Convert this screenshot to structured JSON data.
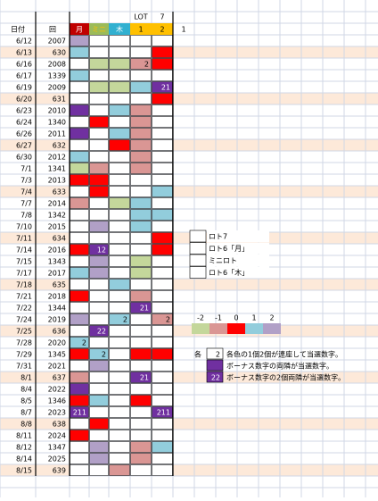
{
  "header": {
    "top": [
      "LOT",
      "7"
    ],
    "columns": [
      {
        "text": "日付",
        "color": null,
        "ink": "#000000"
      },
      {
        "text": "回",
        "color": null,
        "ink": "#000000"
      },
      {
        "text": "月",
        "color": "#c00000",
        "ink": "#ffffff"
      },
      {
        "text": "ミニ",
        "color": "#9bbb59",
        "ink": "#ffc000"
      },
      {
        "text": "木",
        "color": "#31b0d0",
        "ink": "#ffffff"
      },
      {
        "text": "1",
        "color": "#ffc000",
        "ink": "#000000"
      },
      {
        "text": "2",
        "color": "#ffc000",
        "ink": "#000000"
      },
      {
        "text": "1",
        "color": null,
        "ink": "#000000"
      }
    ]
  },
  "rows": [
    {
      "date": "6/12",
      "no": "2007",
      "bg": null,
      "cells": [
        {
          "color": "#b1a0c7"
        },
        {
          "color": "#ffffff"
        },
        {
          "color": "#ffffff"
        },
        {
          "color": "#ffffff"
        },
        {
          "color": "#ffffff"
        }
      ]
    },
    {
      "date": "6/13",
      "no": "630",
      "bg": "#fde9d9",
      "cells": [
        {
          "color": "#92cddc"
        },
        {
          "color": "#ffffff"
        },
        {
          "color": "#ffffff"
        },
        {
          "color": "#ffffff"
        },
        {
          "color": "#ff0000"
        }
      ]
    },
    {
      "date": "6/16",
      "no": "2008",
      "bg": null,
      "cells": [
        {
          "color": "#ffffff"
        },
        {
          "color": "#c4d79b"
        },
        {
          "color": "#c4d79b"
        },
        {
          "color": "#da9694",
          "text": "2"
        },
        {
          "color": "#ff0000"
        }
      ]
    },
    {
      "date": "6/17",
      "no": "1339",
      "bg": null,
      "cells": [
        {
          "color": "#92cddc"
        },
        {
          "color": "#ffffff"
        },
        {
          "color": "#ffffff"
        },
        {
          "color": "#ffffff"
        },
        {
          "color": "#ffffff"
        }
      ]
    },
    {
      "date": "6/19",
      "no": "2009",
      "bg": null,
      "cells": [
        {
          "color": "#ffffff"
        },
        {
          "color": "#c4d79b"
        },
        {
          "color": "#c4d79b"
        },
        {
          "color": "#92cddc"
        },
        {
          "color": "#7030a0",
          "text": "21"
        }
      ]
    },
    {
      "date": "6/20",
      "no": "631",
      "bg": "#fde9d9",
      "cells": [
        {
          "color": "#ffffff"
        },
        {
          "color": "#ffffff"
        },
        {
          "color": "#ffffff"
        },
        {
          "color": "#ffffff"
        },
        {
          "color": "#ff0000"
        }
      ]
    },
    {
      "date": "6/23",
      "no": "2010",
      "bg": null,
      "cells": [
        {
          "color": "#7030a0"
        },
        {
          "color": "#ffffff"
        },
        {
          "color": "#92cddc"
        },
        {
          "color": "#da9694"
        },
        {
          "color": "#ffffff"
        }
      ]
    },
    {
      "date": "6/24",
      "no": "1340",
      "bg": null,
      "cells": [
        {
          "color": "#ffffff"
        },
        {
          "color": "#ff0000"
        },
        {
          "color": "#ffffff"
        },
        {
          "color": "#da9694"
        },
        {
          "color": "#ffffff"
        }
      ]
    },
    {
      "date": "6/26",
      "no": "2011",
      "bg": null,
      "cells": [
        {
          "color": "#7030a0"
        },
        {
          "color": "#ffffff"
        },
        {
          "color": "#92cddc"
        },
        {
          "color": "#da9694"
        },
        {
          "color": "#ffffff"
        }
      ]
    },
    {
      "date": "6/27",
      "no": "632",
      "bg": "#fde9d9",
      "cells": [
        {
          "color": "#ffffff"
        },
        {
          "color": "#ffffff"
        },
        {
          "color": "#ff0000"
        },
        {
          "color": "#da9694"
        },
        {
          "color": "#ffffff"
        }
      ]
    },
    {
      "date": "6/30",
      "no": "2012",
      "bg": null,
      "cells": [
        {
          "color": "#92cddc"
        },
        {
          "color": "#ffffff"
        },
        {
          "color": "#ffffff"
        },
        {
          "color": "#da9694"
        },
        {
          "color": "#ffffff"
        }
      ]
    },
    {
      "date": "7/1",
      "no": "1341",
      "bg": null,
      "cells": [
        {
          "color": "#c4d79b"
        },
        {
          "color": "#da9694"
        },
        {
          "color": "#ffffff"
        },
        {
          "color": "#da9694"
        },
        {
          "color": "#ffffff"
        }
      ]
    },
    {
      "date": "7/3",
      "no": "2013",
      "bg": null,
      "cells": [
        {
          "color": "#ff0000"
        },
        {
          "color": "#ff0000"
        },
        {
          "color": "#ffffff"
        },
        {
          "color": "#ffffff"
        },
        {
          "color": "#ffffff"
        }
      ]
    },
    {
      "date": "7/4",
      "no": "633",
      "bg": "#fde9d9",
      "cells": [
        {
          "color": "#ffffff"
        },
        {
          "color": "#ff0000"
        },
        {
          "color": "#ffffff"
        },
        {
          "color": "#ffffff"
        },
        {
          "color": "#92cddc"
        }
      ]
    },
    {
      "date": "7/7",
      "no": "2014",
      "bg": null,
      "cells": [
        {
          "color": "#da9694"
        },
        {
          "color": "#ffffff"
        },
        {
          "color": "#c4d79b"
        },
        {
          "color": "#92cddc"
        },
        {
          "color": "#ffffff"
        }
      ]
    },
    {
      "date": "7/8",
      "no": "1342",
      "bg": null,
      "cells": [
        {
          "color": "#ffffff"
        },
        {
          "color": "#ffffff"
        },
        {
          "color": "#ffffff"
        },
        {
          "color": "#92cddc"
        },
        {
          "color": "#92cddc"
        }
      ]
    },
    {
      "date": "7/10",
      "no": "2015",
      "bg": null,
      "cells": [
        {
          "color": "#ffffff"
        },
        {
          "color": "#b1a0c7"
        },
        {
          "color": "#ffffff"
        },
        {
          "color": "#92cddc"
        },
        {
          "color": "#ffffff"
        }
      ]
    },
    {
      "date": "7/11",
      "no": "634",
      "bg": "#fde9d9",
      "cells": [
        {
          "color": "#ffffff"
        },
        {
          "color": "#ffffff"
        },
        {
          "color": "#ffffff"
        },
        {
          "color": "#ffffff"
        },
        {
          "color": "#ff0000"
        }
      ]
    },
    {
      "date": "7/14",
      "no": "2016",
      "bg": null,
      "cells": [
        {
          "color": "#ff0000"
        },
        {
          "color": "#7030a0",
          "text": "12"
        },
        {
          "color": "#ffffff"
        },
        {
          "color": "#ffffff"
        },
        {
          "color": "#ff0000"
        }
      ]
    },
    {
      "date": "7/15",
      "no": "1343",
      "bg": null,
      "cells": [
        {
          "color": "#ffffff"
        },
        {
          "color": "#b1a0c7"
        },
        {
          "color": "#ffffff"
        },
        {
          "color": "#c4d79b"
        },
        {
          "color": "#ffffff"
        }
      ]
    },
    {
      "date": "7/17",
      "no": "2017",
      "bg": null,
      "cells": [
        {
          "color": "#92cddc"
        },
        {
          "color": "#b1a0c7"
        },
        {
          "color": "#ffffff"
        },
        {
          "color": "#c4d79b"
        },
        {
          "color": "#ffffff"
        }
      ]
    },
    {
      "date": "7/18",
      "no": "635",
      "bg": "#fde9d9",
      "cells": [
        {
          "color": "#ffffff"
        },
        {
          "color": "#ffffff"
        },
        {
          "color": "#92cddc"
        },
        {
          "color": "#ffffff"
        },
        {
          "color": "#ffffff"
        }
      ]
    },
    {
      "date": "7/21",
      "no": "2018",
      "bg": null,
      "cells": [
        {
          "color": "#ff0000"
        },
        {
          "color": "#ffffff"
        },
        {
          "color": "#ffffff"
        },
        {
          "color": "#da9694"
        },
        {
          "color": "#ffffff"
        }
      ]
    },
    {
      "date": "7/22",
      "no": "1344",
      "bg": null,
      "cells": [
        {
          "color": "#ffffff"
        },
        {
          "color": "#ffffff"
        },
        {
          "color": "#ffffff"
        },
        {
          "color": "#7030a0",
          "text": "21"
        },
        {
          "color": "#ffffff"
        }
      ]
    },
    {
      "date": "7/24",
      "no": "2019",
      "bg": null,
      "cells": [
        {
          "color": "#b1a0c7"
        },
        {
          "color": "#ffffff"
        },
        {
          "color": "#92cddc",
          "text": "2"
        },
        {
          "color": "#ffffff"
        },
        {
          "color": "#da9694",
          "text": "2"
        }
      ]
    },
    {
      "date": "7/25",
      "no": "636",
      "bg": "#fde9d9",
      "cells": [
        {
          "color": "#ffffff"
        },
        {
          "color": "#7030a0",
          "text": "22"
        },
        {
          "color": "#ffffff"
        },
        {
          "color": "#ffffff"
        },
        {
          "color": "#ffffff"
        }
      ]
    },
    {
      "date": "7/28",
      "no": "2020",
      "bg": null,
      "cells": [
        {
          "color": "#92cddc",
          "text": "2"
        },
        {
          "color": "#ffffff"
        },
        {
          "color": "#ffffff"
        },
        {
          "color": "#ffffff"
        },
        {
          "color": "#ffffff"
        }
      ]
    },
    {
      "date": "7/29",
      "no": "1345",
      "bg": null,
      "cells": [
        {
          "color": "#ff0000"
        },
        {
          "color": "#92cddc",
          "text": "2"
        },
        {
          "color": "#ffffff"
        },
        {
          "color": "#ff0000"
        },
        {
          "color": "#ff0000"
        }
      ]
    },
    {
      "date": "7/31",
      "no": "2021",
      "bg": null,
      "cells": [
        {
          "color": "#ffffff"
        },
        {
          "color": "#b1a0c7"
        },
        {
          "color": "#ffffff"
        },
        {
          "color": "#ffffff"
        },
        {
          "color": "#ffffff"
        }
      ]
    },
    {
      "date": "8/1",
      "no": "637",
      "bg": "#fde9d9",
      "cells": [
        {
          "color": "#da9694"
        },
        {
          "color": "#ffffff"
        },
        {
          "color": "#ffffff"
        },
        {
          "color": "#7030a0",
          "text": "21"
        },
        {
          "color": "#ffffff"
        }
      ]
    },
    {
      "date": "8/4",
      "no": "2022",
      "bg": null,
      "cells": [
        {
          "color": "#7030a0"
        },
        {
          "color": "#ffffff"
        },
        {
          "color": "#ffffff"
        },
        {
          "color": "#ffffff"
        },
        {
          "color": "#ffffff"
        }
      ]
    },
    {
      "date": "8/5",
      "no": "1346",
      "bg": null,
      "cells": [
        {
          "color": "#ff0000"
        },
        {
          "color": "#92cddc"
        },
        {
          "color": "#ffffff"
        },
        {
          "color": "#ff0000"
        },
        {
          "color": "#ffffff"
        }
      ]
    },
    {
      "date": "8/7",
      "no": "2023",
      "bg": null,
      "cells": [
        {
          "color": "#7030a0",
          "text": "211"
        },
        {
          "color": "#ffffff"
        },
        {
          "color": "#ffffff"
        },
        {
          "color": "#ffffff"
        },
        {
          "color": "#7030a0",
          "text": "211"
        }
      ]
    },
    {
      "date": "8/8",
      "no": "638",
      "bg": "#fde9d9",
      "cells": [
        {
          "color": "#ffffff"
        },
        {
          "color": "#ff0000"
        },
        {
          "color": "#ffffff"
        },
        {
          "color": "#ffffff"
        },
        {
          "color": "#ffffff"
        }
      ]
    },
    {
      "date": "8/11",
      "no": "2024",
      "bg": null,
      "cells": [
        {
          "color": "#ff0000"
        },
        {
          "color": "#ffffff"
        },
        {
          "color": "#ffffff"
        },
        {
          "color": "#ffffff"
        },
        {
          "color": "#ffffff"
        }
      ]
    },
    {
      "date": "8/12",
      "no": "1347",
      "bg": null,
      "cells": [
        {
          "color": "#ffffff"
        },
        {
          "color": "#b1a0c7"
        },
        {
          "color": "#ffffff"
        },
        {
          "color": "#da9694"
        },
        {
          "color": "#92cddc"
        }
      ]
    },
    {
      "date": "8/14",
      "no": "2025",
      "bg": null,
      "cells": [
        {
          "color": "#ffffff"
        },
        {
          "color": "#b1a0c7"
        },
        {
          "color": "#ffffff"
        },
        {
          "color": "#da9694"
        },
        {
          "color": "#ffffff"
        }
      ]
    },
    {
      "date": "8/15",
      "no": "639",
      "bg": "#fde9d9",
      "cells": [
        {
          "color": "#ffffff"
        },
        {
          "color": "#ffffff"
        },
        {
          "color": "#da9694"
        },
        {
          "color": "#ffffff"
        },
        {
          "color": "#ffffff"
        }
      ]
    }
  ],
  "legend": [
    "ロト7",
    "ロト6「月」",
    "ミニロト",
    "ロト6「木」"
  ],
  "scale": [
    {
      "value": -2,
      "color": "#c4d79b"
    },
    {
      "value": -1,
      "color": "#da9694"
    },
    {
      "value": 0,
      "color": "#ff0000"
    },
    {
      "value": 1,
      "color": "#92cddc"
    },
    {
      "value": 2,
      "color": "#b1a0c7"
    }
  ],
  "notes": [
    {
      "prefix": "各",
      "box": "2",
      "box_color": "#ffffff",
      "text": "各色の1個2個が連座して当選数字。"
    },
    {
      "box_color": "#7030a0",
      "text": "ボーナス数字の両隣が当選数字。"
    },
    {
      "box": "22",
      "box_color": "#7030a0",
      "text": "ボーナス数字の2個両隣が当選数字。"
    }
  ]
}
